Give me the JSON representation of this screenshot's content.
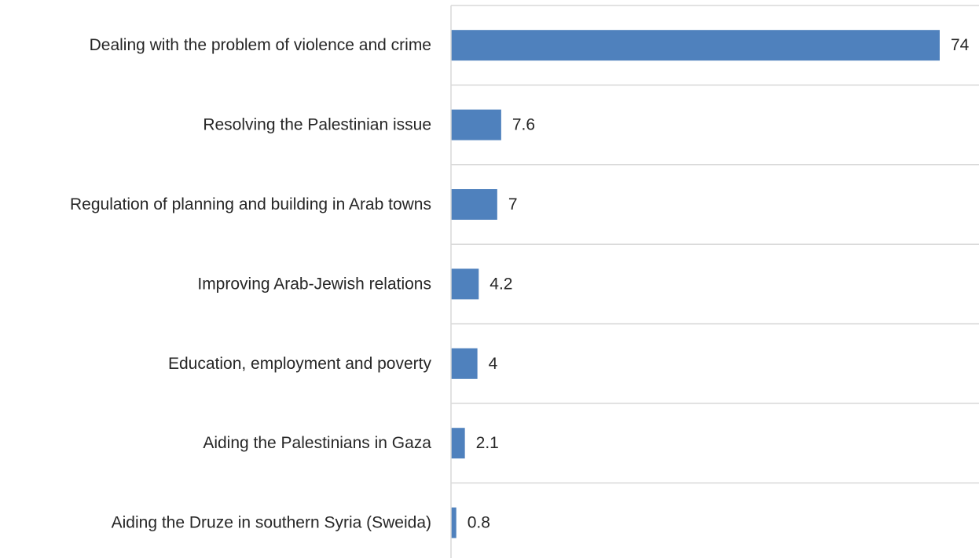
{
  "chart_data": {
    "type": "bar",
    "orientation": "horizontal",
    "categories": [
      "Dealing with the problem of violence and crime",
      "Resolving the Palestinian issue",
      "Regulation of planning and building in Arab towns",
      "Improving Arab-Jewish relations",
      "Education, employment and poverty",
      "Aiding the Palestinians in Gaza",
      "Aiding the Druze in southern Syria (Sweida)"
    ],
    "values": [
      74,
      7.6,
      7,
      4.2,
      4,
      2.1,
      0.8
    ],
    "value_labels": [
      "74",
      "7.6",
      "7",
      "4.2",
      "4",
      "2.1",
      "0.8"
    ],
    "title": "",
    "xlabel": "",
    "ylabel": "",
    "xlim": [
      0,
      80
    ],
    "grid": true,
    "legend": "none",
    "bar_color": "#4f81bd"
  }
}
